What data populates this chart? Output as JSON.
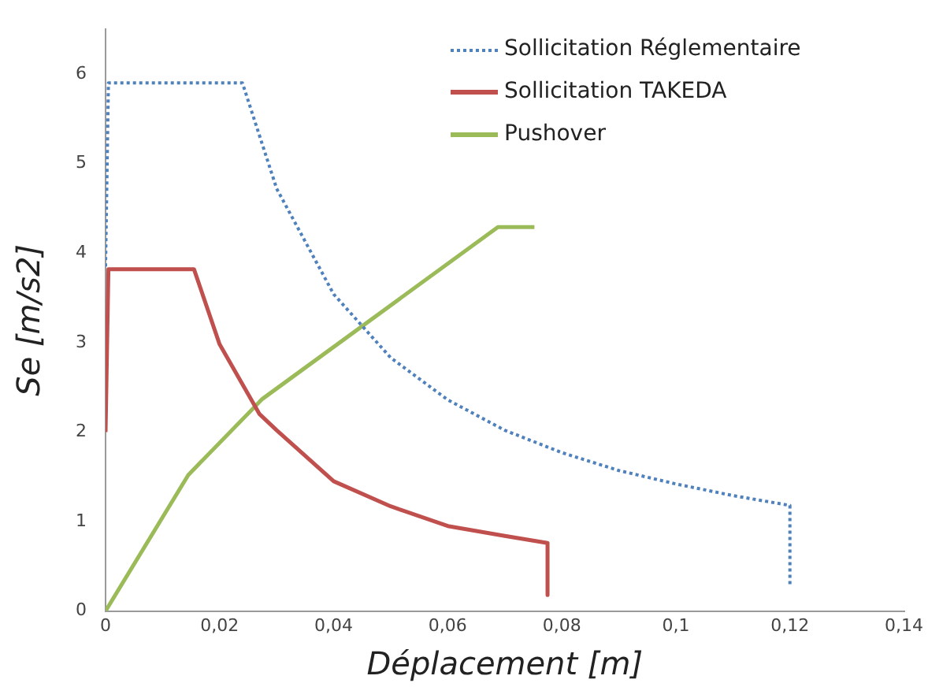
{
  "chart_data": {
    "type": "line",
    "xlabel": "Déplacement [m]",
    "ylabel": "Se [m/s2]",
    "xlim": [
      0,
      0.14
    ],
    "xticks": [
      0,
      {
        "value": 0.02,
        "label": "0,02"
      },
      {
        "value": 0.04,
        "label": "0,04"
      },
      {
        "value": 0.06,
        "label": "0,06"
      },
      {
        "value": 0.08,
        "label": "0,08"
      },
      {
        "value": 0.1,
        "label": "0,1"
      },
      {
        "value": 0.12,
        "label": "0,12"
      },
      {
        "value": 0.14,
        "label": "0,14"
      }
    ],
    "ylim": [
      0,
      6.5
    ],
    "yticks": [
      0,
      1,
      2,
      3,
      4,
      5,
      6
    ],
    "grid": false,
    "legend": "top right",
    "marker": "none",
    "series": [
      {
        "name": "Sollicitation Réglementaire",
        "color": "#4f81bd",
        "line_style": "dotted",
        "x": [
          0,
          0.0005,
          0.024,
          0.03,
          0.04,
          0.05,
          0.06,
          0.07,
          0.08,
          0.09,
          0.1,
          0.11,
          0.12,
          0.12
        ],
        "values": [
          3.85,
          5.9,
          5.9,
          4.72,
          3.54,
          2.83,
          2.36,
          2.02,
          1.77,
          1.57,
          1.42,
          1.29,
          1.18,
          0.3
        ]
      },
      {
        "name": "Sollicitation TAKEDA",
        "color": "#c0504d",
        "line_style": "solid",
        "x": [
          0,
          0.0005,
          0.0155,
          0.02,
          0.027,
          0.03,
          0.04,
          0.05,
          0.06,
          0.07,
          0.0775,
          0.0775
        ],
        "values": [
          2,
          3.82,
          3.82,
          2.98,
          2.2,
          2.02,
          1.45,
          1.17,
          0.95,
          0.84,
          0.76,
          0.18
        ]
      },
      {
        "name": "Pushover",
        "color": "#9bbb59",
        "line_style": "solid",
        "x": [
          0,
          0.0145,
          0.0275,
          0.0688,
          0.0752
        ],
        "values": [
          0,
          1.52,
          2.37,
          4.29,
          4.29
        ]
      }
    ]
  }
}
